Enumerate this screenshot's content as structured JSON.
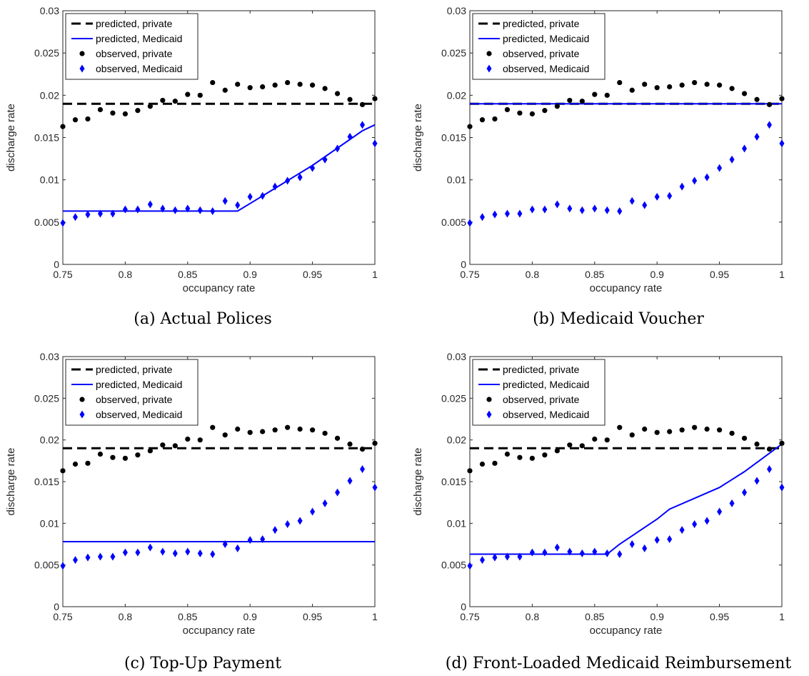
{
  "chart_data": [
    {
      "type": "line",
      "caption": "(a) Actual Polices",
      "xlabel": "occupancy rate",
      "ylabel": "discharge rate",
      "xlim": [
        0.75,
        1
      ],
      "ylim": [
        0,
        0.03
      ],
      "xticks": [
        "0.75",
        "0.8",
        "0.85",
        "0.9",
        "0.95",
        "1"
      ],
      "yticks": [
        "0",
        "0.005",
        "0.01",
        "0.015",
        "0.02",
        "0.025",
        "0.03"
      ],
      "legend_position": "top-left",
      "series": [
        {
          "name": "predicted, private",
          "kind": "dashed-line",
          "color": "#000000",
          "x": [
            0.75,
            1.0
          ],
          "y": [
            0.019,
            0.019
          ]
        },
        {
          "name": "predicted, Medicaid",
          "kind": "line",
          "color": "#0000ff",
          "x": [
            0.75,
            0.89,
            0.9,
            0.95,
            0.99,
            1.0
          ],
          "y": [
            0.0063,
            0.0063,
            0.0072,
            0.0117,
            0.0158,
            0.0165
          ]
        },
        {
          "name": "observed, private",
          "kind": "dots",
          "color": "#000000",
          "x": [
            0.75,
            0.76,
            0.77,
            0.78,
            0.79,
            0.8,
            0.81,
            0.82,
            0.83,
            0.84,
            0.85,
            0.86,
            0.87,
            0.88,
            0.89,
            0.9,
            0.91,
            0.92,
            0.93,
            0.94,
            0.95,
            0.96,
            0.97,
            0.98,
            0.99,
            1.0
          ],
          "y": [
            0.0163,
            0.0171,
            0.0172,
            0.0183,
            0.0179,
            0.0178,
            0.0182,
            0.0187,
            0.0194,
            0.0193,
            0.0201,
            0.02,
            0.0215,
            0.0206,
            0.0213,
            0.0209,
            0.021,
            0.0212,
            0.0215,
            0.0213,
            0.0212,
            0.0208,
            0.0202,
            0.0195,
            0.0189,
            0.0196
          ]
        },
        {
          "name": "observed, Medicaid",
          "kind": "diamonds",
          "color": "#0000ff",
          "x": [
            0.75,
            0.76,
            0.77,
            0.78,
            0.79,
            0.8,
            0.81,
            0.82,
            0.83,
            0.84,
            0.85,
            0.86,
            0.87,
            0.88,
            0.89,
            0.9,
            0.91,
            0.92,
            0.93,
            0.94,
            0.95,
            0.96,
            0.97,
            0.98,
            0.99,
            1.0
          ],
          "y": [
            0.0049,
            0.0056,
            0.0059,
            0.006,
            0.006,
            0.0065,
            0.0065,
            0.0071,
            0.0066,
            0.0064,
            0.0066,
            0.0064,
            0.0063,
            0.0075,
            0.007,
            0.008,
            0.0081,
            0.0092,
            0.0099,
            0.0103,
            0.0114,
            0.0124,
            0.0137,
            0.0151,
            0.0165,
            0.0143
          ]
        }
      ]
    },
    {
      "type": "line",
      "caption": "(b) Medicaid Voucher",
      "xlabel": "occupancy rate",
      "ylabel": "discharge rate",
      "xlim": [
        0.75,
        1
      ],
      "ylim": [
        0,
        0.03
      ],
      "xticks": [
        "0.75",
        "0.8",
        "0.85",
        "0.9",
        "0.95",
        "1"
      ],
      "yticks": [
        "0",
        "0.005",
        "0.01",
        "0.015",
        "0.02",
        "0.025",
        "0.03"
      ],
      "legend_position": "top-left",
      "series": [
        {
          "name": "predicted, private",
          "kind": "dashed-line",
          "color": "#000000",
          "x": [
            0.75,
            1.0
          ],
          "y": [
            0.019,
            0.019
          ]
        },
        {
          "name": "predicted, Medicaid",
          "kind": "line",
          "color": "#0000ff",
          "x": [
            0.75,
            1.0
          ],
          "y": [
            0.019,
            0.019
          ]
        },
        {
          "name": "observed, private",
          "kind": "dots",
          "color": "#000000",
          "x": [
            0.75,
            0.76,
            0.77,
            0.78,
            0.79,
            0.8,
            0.81,
            0.82,
            0.83,
            0.84,
            0.85,
            0.86,
            0.87,
            0.88,
            0.89,
            0.9,
            0.91,
            0.92,
            0.93,
            0.94,
            0.95,
            0.96,
            0.97,
            0.98,
            0.99,
            1.0
          ],
          "y": [
            0.0163,
            0.0171,
            0.0172,
            0.0183,
            0.0179,
            0.0178,
            0.0182,
            0.0187,
            0.0194,
            0.0193,
            0.0201,
            0.02,
            0.0215,
            0.0206,
            0.0213,
            0.0209,
            0.021,
            0.0212,
            0.0215,
            0.0213,
            0.0212,
            0.0208,
            0.0202,
            0.0195,
            0.0189,
            0.0196
          ]
        },
        {
          "name": "observed, Medicaid",
          "kind": "diamonds",
          "color": "#0000ff",
          "x": [
            0.75,
            0.76,
            0.77,
            0.78,
            0.79,
            0.8,
            0.81,
            0.82,
            0.83,
            0.84,
            0.85,
            0.86,
            0.87,
            0.88,
            0.89,
            0.9,
            0.91,
            0.92,
            0.93,
            0.94,
            0.95,
            0.96,
            0.97,
            0.98,
            0.99,
            1.0
          ],
          "y": [
            0.0049,
            0.0056,
            0.0059,
            0.006,
            0.006,
            0.0065,
            0.0065,
            0.0071,
            0.0066,
            0.0064,
            0.0066,
            0.0064,
            0.0063,
            0.0075,
            0.007,
            0.008,
            0.0081,
            0.0092,
            0.0099,
            0.0103,
            0.0114,
            0.0124,
            0.0137,
            0.0151,
            0.0165,
            0.0143
          ]
        }
      ]
    },
    {
      "type": "line",
      "caption": "(c) Top-Up Payment",
      "xlabel": "occupancy rate",
      "ylabel": "discharge rate",
      "xlim": [
        0.75,
        1
      ],
      "ylim": [
        0,
        0.03
      ],
      "xticks": [
        "0.75",
        "0.8",
        "0.85",
        "0.9",
        "0.95",
        "1"
      ],
      "yticks": [
        "0",
        "0.005",
        "0.01",
        "0.015",
        "0.02",
        "0.025",
        "0.03"
      ],
      "legend_position": "top-left",
      "series": [
        {
          "name": "predicted, private",
          "kind": "dashed-line",
          "color": "#000000",
          "x": [
            0.75,
            1.0
          ],
          "y": [
            0.019,
            0.019
          ]
        },
        {
          "name": "predicted, Medicaid",
          "kind": "line",
          "color": "#0000ff",
          "x": [
            0.75,
            1.0
          ],
          "y": [
            0.0078,
            0.0078
          ]
        },
        {
          "name": "observed, private",
          "kind": "dots",
          "color": "#000000",
          "x": [
            0.75,
            0.76,
            0.77,
            0.78,
            0.79,
            0.8,
            0.81,
            0.82,
            0.83,
            0.84,
            0.85,
            0.86,
            0.87,
            0.88,
            0.89,
            0.9,
            0.91,
            0.92,
            0.93,
            0.94,
            0.95,
            0.96,
            0.97,
            0.98,
            0.99,
            1.0
          ],
          "y": [
            0.0163,
            0.0171,
            0.0172,
            0.0183,
            0.0179,
            0.0178,
            0.0182,
            0.0187,
            0.0194,
            0.0193,
            0.0201,
            0.02,
            0.0215,
            0.0206,
            0.0213,
            0.0209,
            0.021,
            0.0212,
            0.0215,
            0.0213,
            0.0212,
            0.0208,
            0.0202,
            0.0195,
            0.0189,
            0.0196
          ]
        },
        {
          "name": "observed, Medicaid",
          "kind": "diamonds",
          "color": "#0000ff",
          "x": [
            0.75,
            0.76,
            0.77,
            0.78,
            0.79,
            0.8,
            0.81,
            0.82,
            0.83,
            0.84,
            0.85,
            0.86,
            0.87,
            0.88,
            0.89,
            0.9,
            0.91,
            0.92,
            0.93,
            0.94,
            0.95,
            0.96,
            0.97,
            0.98,
            0.99,
            1.0
          ],
          "y": [
            0.0049,
            0.0056,
            0.0059,
            0.006,
            0.006,
            0.0065,
            0.0065,
            0.0071,
            0.0066,
            0.0064,
            0.0066,
            0.0064,
            0.0063,
            0.0075,
            0.007,
            0.008,
            0.0081,
            0.0092,
            0.0099,
            0.0103,
            0.0114,
            0.0124,
            0.0137,
            0.0151,
            0.0165,
            0.0143
          ]
        }
      ]
    },
    {
      "type": "line",
      "caption": "(d) Front-Loaded Medicaid Reimbursement",
      "xlabel": "occupancy rate",
      "ylabel": "discharge rate",
      "xlim": [
        0.75,
        1
      ],
      "ylim": [
        0,
        0.03
      ],
      "xticks": [
        "0.75",
        "0.8",
        "0.85",
        "0.9",
        "0.95",
        "1"
      ],
      "yticks": [
        "0",
        "0.005",
        "0.01",
        "0.015",
        "0.02",
        "0.025",
        "0.03"
      ],
      "legend_position": "top-left",
      "series": [
        {
          "name": "predicted, private",
          "kind": "dashed-line",
          "color": "#000000",
          "x": [
            0.75,
            1.0
          ],
          "y": [
            0.019,
            0.019
          ]
        },
        {
          "name": "predicted, Medicaid",
          "kind": "line",
          "color": "#0000ff",
          "x": [
            0.75,
            0.86,
            0.87,
            0.9,
            0.91,
            0.95,
            0.97,
            1.0
          ],
          "y": [
            0.0063,
            0.0063,
            0.0075,
            0.0105,
            0.0117,
            0.0143,
            0.0162,
            0.0195
          ]
        },
        {
          "name": "observed, private",
          "kind": "dots",
          "color": "#000000",
          "x": [
            0.75,
            0.76,
            0.77,
            0.78,
            0.79,
            0.8,
            0.81,
            0.82,
            0.83,
            0.84,
            0.85,
            0.86,
            0.87,
            0.88,
            0.89,
            0.9,
            0.91,
            0.92,
            0.93,
            0.94,
            0.95,
            0.96,
            0.97,
            0.98,
            0.99,
            1.0
          ],
          "y": [
            0.0163,
            0.0171,
            0.0172,
            0.0183,
            0.0179,
            0.0178,
            0.0182,
            0.0187,
            0.0194,
            0.0193,
            0.0201,
            0.02,
            0.0215,
            0.0206,
            0.0213,
            0.0209,
            0.021,
            0.0212,
            0.0215,
            0.0213,
            0.0212,
            0.0208,
            0.0202,
            0.0195,
            0.0189,
            0.0196
          ]
        },
        {
          "name": "observed, Medicaid",
          "kind": "diamonds",
          "color": "#0000ff",
          "x": [
            0.75,
            0.76,
            0.77,
            0.78,
            0.79,
            0.8,
            0.81,
            0.82,
            0.83,
            0.84,
            0.85,
            0.86,
            0.87,
            0.88,
            0.89,
            0.9,
            0.91,
            0.92,
            0.93,
            0.94,
            0.95,
            0.96,
            0.97,
            0.98,
            0.99,
            1.0
          ],
          "y": [
            0.0049,
            0.0056,
            0.0059,
            0.006,
            0.006,
            0.0065,
            0.0065,
            0.0071,
            0.0066,
            0.0064,
            0.0066,
            0.0064,
            0.0063,
            0.0075,
            0.007,
            0.008,
            0.0081,
            0.0092,
            0.0099,
            0.0103,
            0.0114,
            0.0124,
            0.0137,
            0.0151,
            0.0165,
            0.0143
          ]
        }
      ]
    }
  ]
}
